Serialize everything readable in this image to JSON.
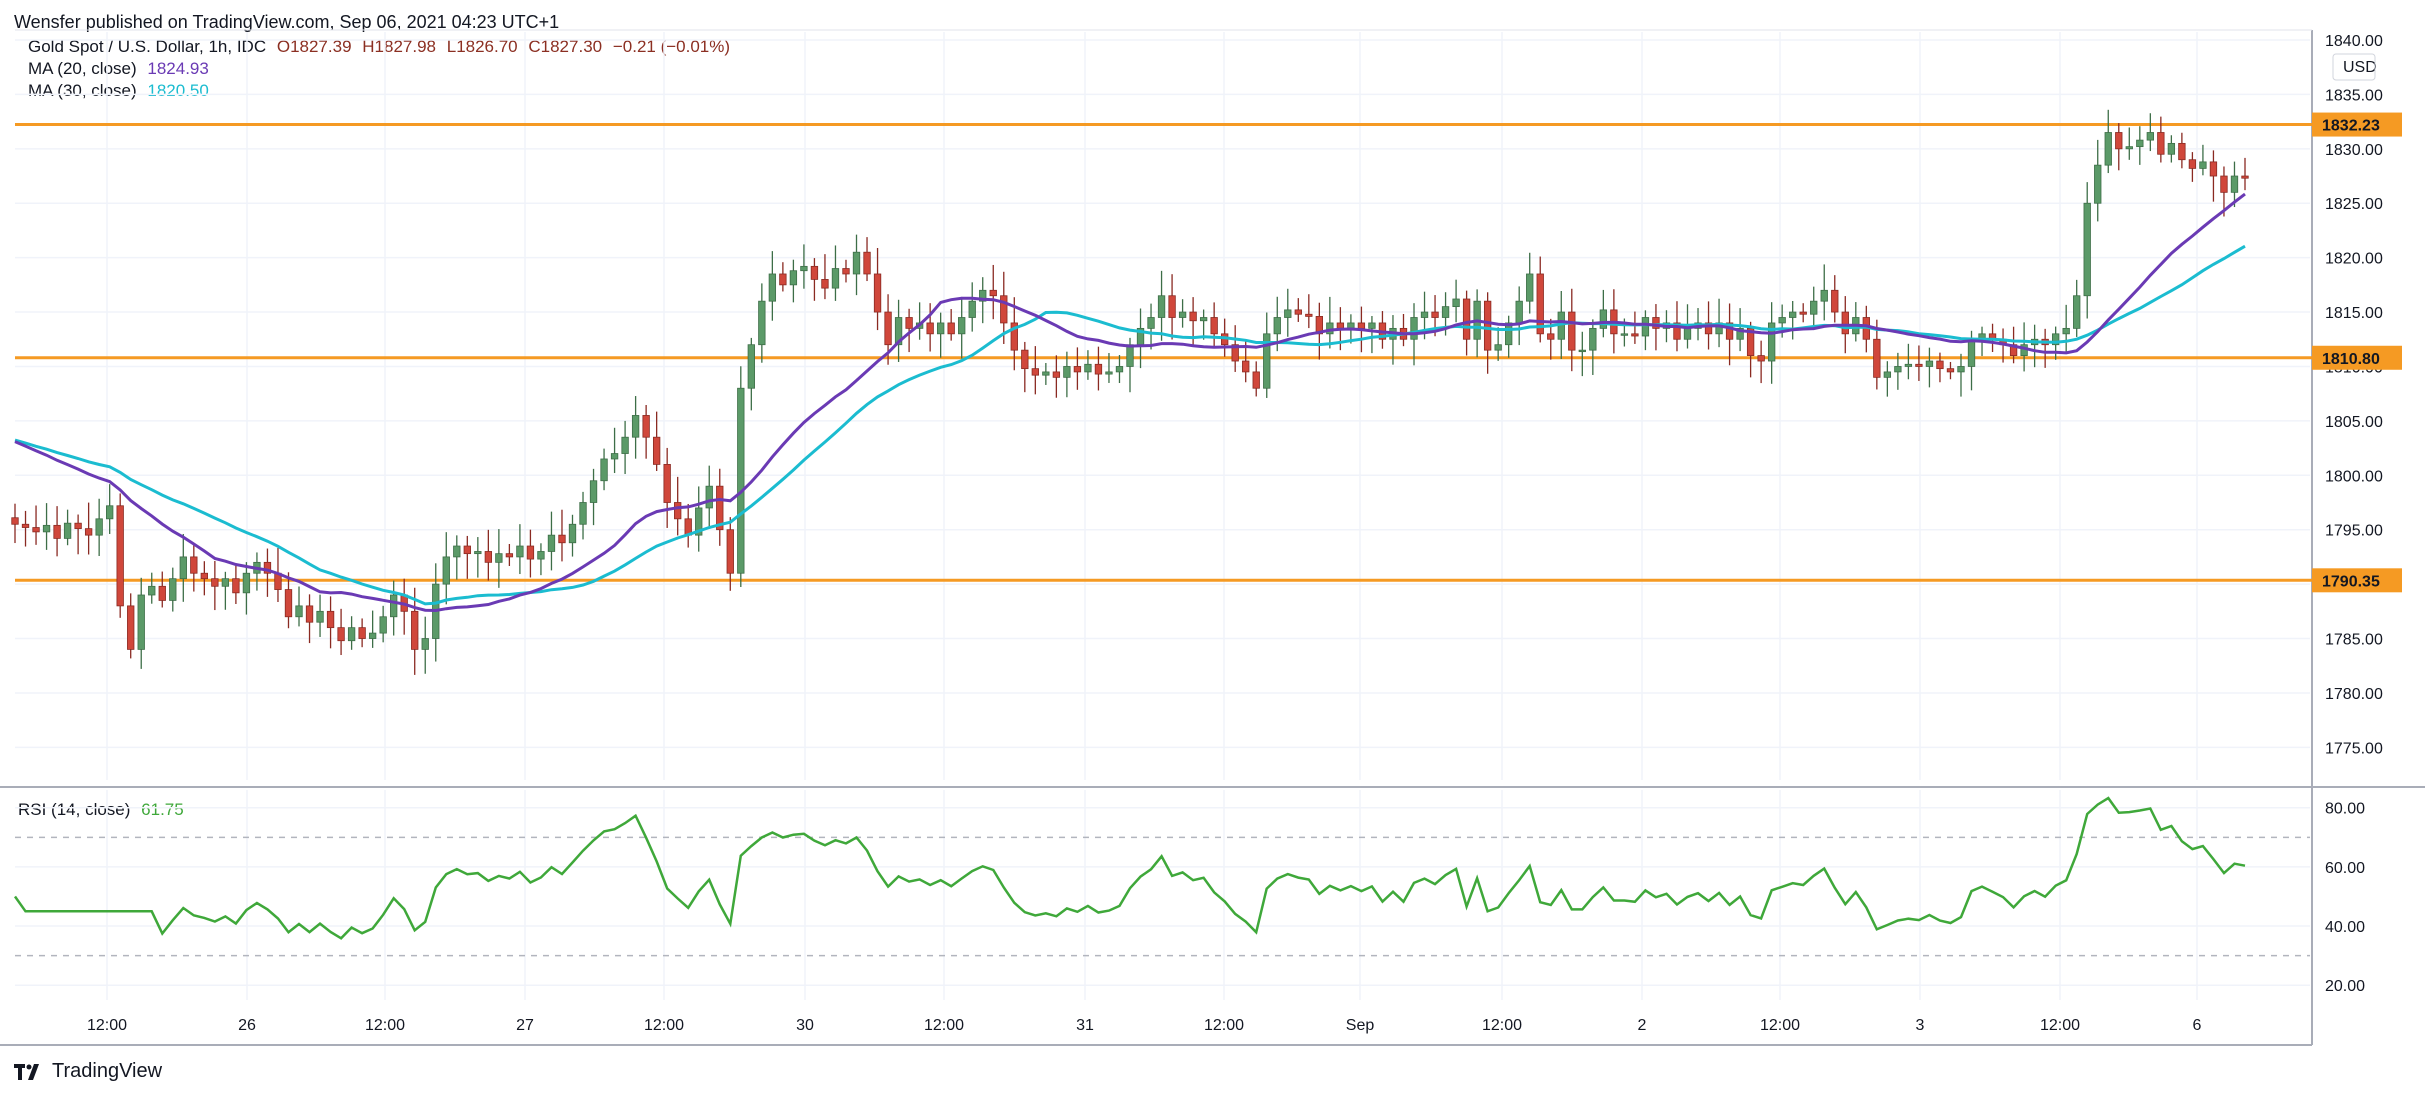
{
  "header": {
    "publisher_line": "Wensfer published on TradingView.com, Sep 06, 2021 04:23 UTC+1"
  },
  "legend": {
    "symbol": "Gold Spot / U.S. Dollar, 1h, IDC",
    "open": "O1827.39",
    "high": "H1827.98",
    "low": "L1826.70",
    "close": "C1827.30",
    "change": "−0.21 (−0.01%)",
    "ma20_label": "MA (20, close)",
    "ma20_value": "1824.93",
    "ma30_label": "MA (30, close)",
    "ma30_value": "1820.50"
  },
  "rsi_legend": {
    "label": "RSI (14, close)",
    "value": "61.75"
  },
  "footer": {
    "brand": "TradingView"
  },
  "colors": {
    "up": "#5b9a68",
    "down": "#d0473b",
    "ma20": "#6a3ab4",
    "ma30": "#1bbcd0",
    "rsi": "#3fa83a",
    "level": "#f59a23",
    "grid": "#f0f3fa"
  },
  "chart_data": [
    {
      "type": "candlestick",
      "currency": "USD",
      "y_axis_ticks": [
        "1775.00",
        "1780.00",
        "1785.00",
        "1790.00",
        "1795.00",
        "1800.00",
        "1805.00",
        "1810.00",
        "1815.00",
        "1820.00",
        "1825.00",
        "1830.00",
        "1835.00",
        "1840.00"
      ],
      "ylim": [
        1772,
        1840
      ],
      "x_axis_ticks": [
        "12:00",
        "26",
        "12:00",
        "27",
        "12:00",
        "30",
        "12:00",
        "31",
        "12:00",
        "Sep",
        "12:00",
        "2",
        "12:00",
        "3",
        "12:00",
        "6"
      ],
      "horizontal_levels": [
        "1832.23",
        "1810.80",
        "1790.35"
      ],
      "hlines": [
        1832.23,
        1810.8,
        1790.35
      ],
      "candles_close": [
        1795.5,
        1795.2,
        1794.8,
        1795.4,
        1794.2,
        1795.6,
        1795.1,
        1794.5,
        1796.0,
        1797.2,
        1788.0,
        1784.0,
        1789.0,
        1789.8,
        1788.5,
        1790.5,
        1792.5,
        1791.0,
        1790.5,
        1789.8,
        1790.5,
        1789.2,
        1791.0,
        1792.0,
        1791.0,
        1789.5,
        1787.0,
        1788.0,
        1786.5,
        1787.5,
        1786.0,
        1784.8,
        1786.0,
        1785.0,
        1785.5,
        1787.0,
        1789.0,
        1787.5,
        1784.0,
        1785.0,
        1790.0,
        1792.5,
        1793.5,
        1792.8,
        1793.0,
        1792.0,
        1792.8,
        1792.5,
        1793.5,
        1792.3,
        1793.0,
        1794.5,
        1793.8,
        1795.5,
        1797.5,
        1799.5,
        1801.5,
        1802.0,
        1803.5,
        1805.5,
        1803.5,
        1801.0,
        1797.5,
        1796.0,
        1794.5,
        1797.0,
        1799.0,
        1795.0,
        1791.0,
        1808.0,
        1812.0,
        1816.0,
        1818.5,
        1817.5,
        1818.8,
        1819.2,
        1818.0,
        1817.2,
        1819.0,
        1818.5,
        1820.5,
        1818.5,
        1815.0,
        1812.0,
        1814.5,
        1813.5,
        1814.0,
        1813.0,
        1814.0,
        1813.0,
        1814.5,
        1816.0,
        1817.0,
        1816.5,
        1814.0,
        1811.5,
        1809.8,
        1809.2,
        1809.5,
        1809.0,
        1810.0,
        1809.5,
        1810.2,
        1809.3,
        1809.5,
        1810.0,
        1812.0,
        1813.5,
        1814.5,
        1816.5,
        1814.5,
        1815.0,
        1814.2,
        1814.5,
        1813.0,
        1812.0,
        1810.5,
        1809.5,
        1808.0,
        1813.0,
        1814.5,
        1815.2,
        1814.8,
        1814.6,
        1813.0,
        1814.0,
        1813.5,
        1814.0,
        1813.5,
        1814.0,
        1812.5,
        1813.5,
        1812.5,
        1814.5,
        1815.0,
        1814.5,
        1815.5,
        1816.2,
        1812.5,
        1816.0,
        1811.5,
        1812.0,
        1814.0,
        1816.0,
        1818.5,
        1813.0,
        1812.5,
        1815.0,
        1811.5,
        1811.5,
        1813.5,
        1815.2,
        1813.0,
        1813.0,
        1812.8,
        1814.5,
        1813.5,
        1814.0,
        1812.5,
        1813.5,
        1814.0,
        1813.0,
        1814.0,
        1812.5,
        1813.5,
        1811.0,
        1810.5,
        1814.0,
        1814.5,
        1815.0,
        1814.8,
        1816.0,
        1817.0,
        1815.0,
        1813.0,
        1814.5,
        1812.5,
        1809.0,
        1809.5,
        1810.0,
        1810.2,
        1810.0,
        1810.5,
        1809.8,
        1809.5,
        1810.0,
        1812.5,
        1813.0,
        1812.5,
        1812.0,
        1811.0,
        1812.0,
        1812.5,
        1812.0,
        1813.0,
        1813.5,
        1816.5,
        1825.0,
        1828.5,
        1831.5,
        1830.0,
        1830.2,
        1830.8,
        1831.5,
        1829.5,
        1830.5,
        1829.0,
        1828.2,
        1828.8,
        1827.5,
        1826.0,
        1827.5,
        1827.3
      ],
      "ma20_endpoint": 1824.93,
      "ma30_endpoint": 1820.5
    },
    {
      "type": "line",
      "title": "RSI (14, close)",
      "y_axis_ticks": [
        "20.00",
        "40.00",
        "60.00",
        "80.00"
      ],
      "ylim": [
        15,
        86
      ],
      "guide_levels": [
        30,
        70
      ],
      "last_value": 61.75
    }
  ]
}
